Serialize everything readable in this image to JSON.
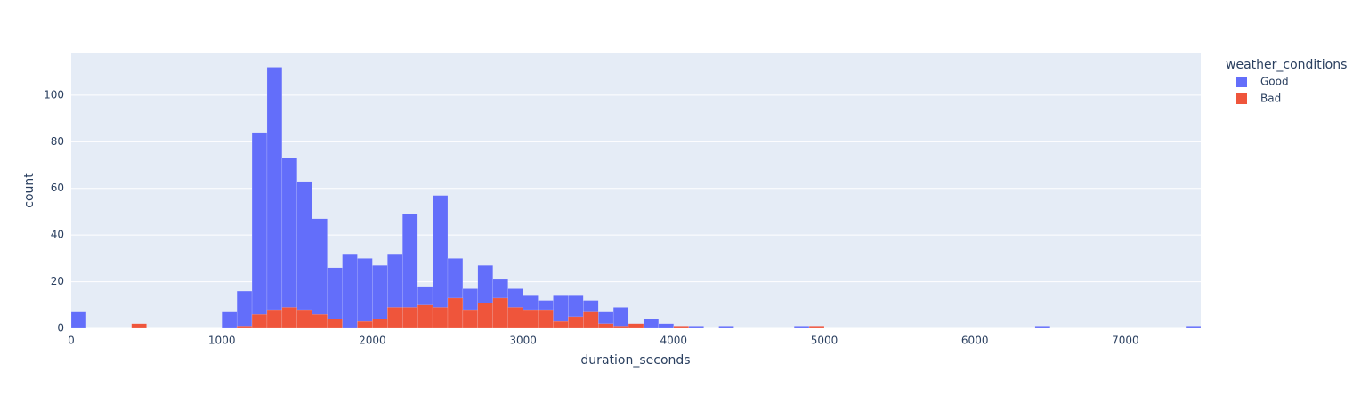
{
  "chart_data": {
    "type": "histogram",
    "x_label": "duration_seconds",
    "y_label": "count",
    "legend_title": "weather_conditions",
    "bins": [
      0,
      100,
      200,
      300,
      400,
      500,
      600,
      700,
      800,
      900,
      1000,
      1100,
      1200,
      1300,
      1400,
      1500,
      1600,
      1700,
      1800,
      1900,
      2000,
      2100,
      2200,
      2300,
      2400,
      2500,
      2600,
      2700,
      2800,
      2900,
      3000,
      3100,
      3200,
      3300,
      3400,
      3500,
      3600,
      3700,
      3800,
      3900,
      4000,
      4100,
      4200,
      4300,
      4400,
      4500,
      4600,
      4700,
      4800,
      4900,
      5000,
      5100,
      5200,
      5300,
      5400,
      5500,
      5600,
      5700,
      5800,
      5900,
      6000,
      6100,
      6200,
      6300,
      6400,
      6500,
      6600,
      6700,
      6800,
      6900,
      7000,
      7100,
      7200,
      7300,
      7400,
      7500
    ],
    "series": [
      {
        "name": "Good",
        "color": "#636efa",
        "values": [
          7,
          0,
          0,
          0,
          0,
          0,
          0,
          0,
          0,
          0,
          7,
          16,
          84,
          112,
          73,
          63,
          47,
          26,
          32,
          30,
          27,
          32,
          49,
          18,
          57,
          30,
          17,
          27,
          21,
          17,
          14,
          12,
          14,
          14,
          12,
          7,
          9,
          2,
          4,
          2,
          1,
          1,
          0,
          1,
          0,
          0,
          0,
          0,
          1,
          1,
          0,
          0,
          0,
          0,
          0,
          0,
          0,
          0,
          0,
          0,
          0,
          0,
          0,
          0,
          1,
          0,
          0,
          0,
          0,
          0,
          0,
          0,
          0,
          0,
          1
        ]
      },
      {
        "name": "Bad",
        "color": "#ef553b",
        "values": [
          0,
          0,
          0,
          0,
          2,
          0,
          0,
          0,
          0,
          0,
          0,
          1,
          6,
          8,
          9,
          8,
          6,
          4,
          0,
          3,
          4,
          9,
          9,
          10,
          9,
          13,
          8,
          11,
          13,
          9,
          8,
          8,
          3,
          5,
          7,
          2,
          1,
          2,
          0,
          0,
          1,
          0,
          0,
          0,
          0,
          0,
          0,
          0,
          0,
          1,
          0,
          0,
          0,
          0,
          0,
          0,
          0,
          0,
          0,
          0,
          0,
          0,
          0,
          0,
          0,
          0,
          0,
          0,
          0,
          0,
          0,
          0,
          0,
          0,
          0
        ]
      }
    ],
    "xlim": [
      0,
      7500
    ],
    "xticks": [
      0,
      1000,
      2000,
      3000,
      4000,
      5000,
      6000,
      7000
    ],
    "ylim": [
      0,
      117.9
    ],
    "yticks": [
      0,
      20,
      40,
      60,
      80,
      100
    ],
    "grid": true
  }
}
